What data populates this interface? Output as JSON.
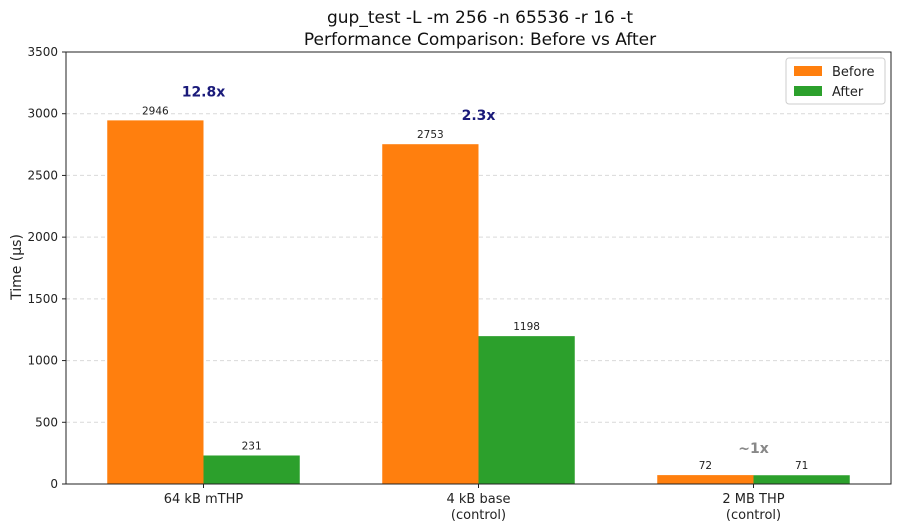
{
  "chart_data": {
    "type": "bar",
    "title": "gup_test -L -m 256 -n 65536 -r 16 -t",
    "subtitle": "Performance Comparison: Before vs After",
    "xlabel": "",
    "ylabel": "Time (µs)",
    "ylim": [
      0,
      3500
    ],
    "yticks": [
      "0",
      "500",
      "1000",
      "1500",
      "2000",
      "2500",
      "3000",
      "3500"
    ],
    "categories": [
      [
        "64 kB mTHP"
      ],
      [
        "4 kB base",
        "(control)"
      ],
      [
        "2 MB THP",
        "(control)"
      ]
    ],
    "series": [
      {
        "name": "Before",
        "color": "#ff7f0e",
        "values": [
          2946,
          2753,
          72
        ]
      },
      {
        "name": "After",
        "color": "#2ca02c",
        "values": [
          231,
          1198,
          71
        ]
      }
    ],
    "ratio_labels": [
      {
        "text": "12.8x",
        "color": "#1a1a7a"
      },
      {
        "text": "2.3x",
        "color": "#1a1a7a"
      },
      {
        "text": "~1x",
        "color": "#888888"
      }
    ],
    "grid": true,
    "legend_position": "top-right"
  }
}
